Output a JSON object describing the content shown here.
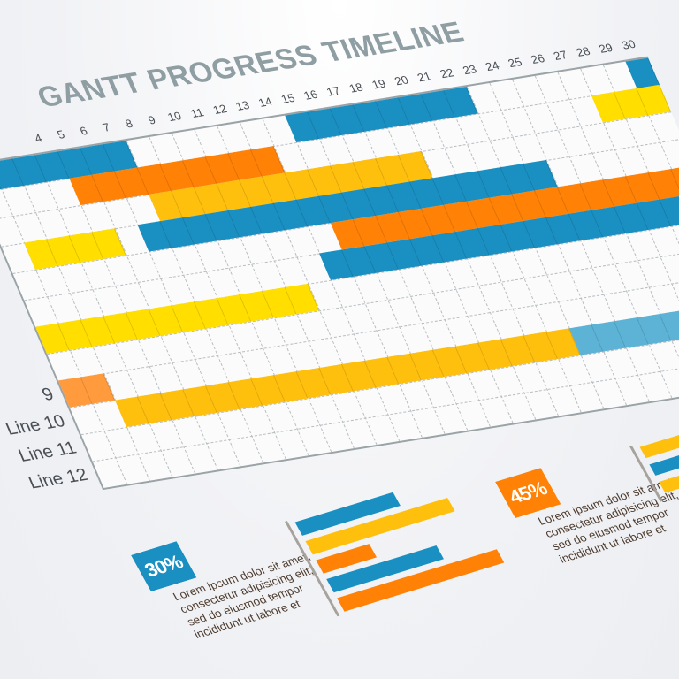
{
  "colors": {
    "blue": "#1a8fc2",
    "orange": "#ff8106",
    "yellow": "#ffbf0d",
    "bright_yellow": "#ffde00",
    "light_orange": "#ff9b3d",
    "light_blue": "#5cb3d6",
    "title": "#8e9ea3"
  },
  "chart_data": {
    "type": "gantt",
    "title": "GANTT PROGRESS TIMELINE",
    "xlim": [
      1,
      30
    ],
    "x_tick_labels": [
      "4",
      "5",
      "6",
      "7",
      "8",
      "9",
      "10",
      "11",
      "12",
      "13",
      "14",
      "15",
      "16",
      "17",
      "18",
      "19",
      "20",
      "21",
      "22",
      "23",
      "24",
      "25",
      "26",
      "27",
      "28",
      "29",
      "30"
    ],
    "row_labels": [
      "",
      "",
      "",
      "",
      "",
      "",
      "",
      "",
      "9",
      "Line 10",
      "Line 11",
      "Line 12"
    ],
    "grid": true,
    "tasks": [
      {
        "row": 1,
        "start": 1,
        "end": 7,
        "color": "blue"
      },
      {
        "row": 1,
        "start": 15,
        "end": 22,
        "color": "blue"
      },
      {
        "row": 1,
        "start": 30,
        "end": 30,
        "color": "blue"
      },
      {
        "row": 2,
        "start": 5,
        "end": 13,
        "color": "orange"
      },
      {
        "row": 2,
        "start": 28,
        "end": 30,
        "color": "bright_yellow"
      },
      {
        "row": 3,
        "start": 8,
        "end": 19,
        "color": "yellow"
      },
      {
        "row": 4,
        "start": 2,
        "end": 5,
        "color": "bright_yellow"
      },
      {
        "row": 4,
        "start": 7,
        "end": 24,
        "color": "blue"
      },
      {
        "row": 5,
        "start": 15,
        "end": 30,
        "color": "orange"
      },
      {
        "row": 6,
        "start": 14,
        "end": 30,
        "color": "blue"
      },
      {
        "row": 7,
        "start": 1,
        "end": 12,
        "color": "bright_yellow"
      },
      {
        "row": 9,
        "start": 1,
        "end": 2,
        "color": "light_orange"
      },
      {
        "row": 10,
        "start": 3,
        "end": 22,
        "color": "yellow"
      },
      {
        "row": 10,
        "start": 23,
        "end": 30,
        "color": "light_blue"
      }
    ]
  },
  "widgets": {
    "w1": {
      "percent": "30%",
      "color": "blue",
      "text": [
        "Lorem ipsum dolor sit amet,",
        "consectetur adipisicing elit,",
        "sed do eiusmod tempor",
        "incididunt ut labore et"
      ]
    },
    "w2": {
      "percent": "45%",
      "color": "orange",
      "text": [
        "Lorem ipsum dolor sit amet,",
        "consectetur adipisicing elit,",
        "sed do eiusmod tempor",
        "incididunt ut labore et"
      ]
    },
    "mini_chart": [
      {
        "value": 0.55,
        "color": "blue"
      },
      {
        "value": 0.8,
        "color": "yellow"
      },
      {
        "value": 0.3,
        "color": "orange"
      },
      {
        "value": 0.62,
        "color": "blue"
      },
      {
        "value": 0.9,
        "color": "orange"
      }
    ],
    "partial_chart": [
      {
        "value": 0.8,
        "color": "yellow"
      },
      {
        "value": 0.6,
        "color": "blue"
      },
      {
        "value": 0.7,
        "color": "yellow"
      }
    ]
  }
}
